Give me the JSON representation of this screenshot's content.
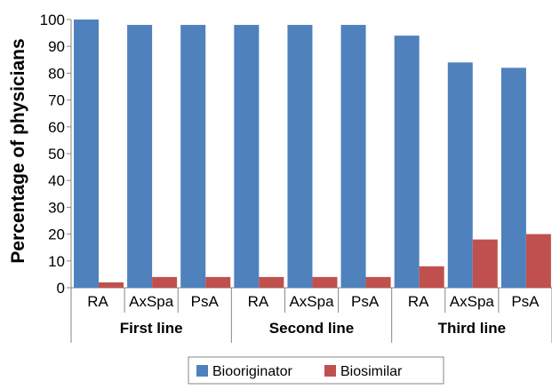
{
  "chart_data": {
    "type": "bar",
    "ylabel": "Percentage of physicians",
    "ylim": [
      0,
      100
    ],
    "yticks": [
      0,
      10,
      20,
      30,
      40,
      50,
      60,
      70,
      80,
      90,
      100
    ],
    "grid": false,
    "legend_position": "bottom",
    "groups": [
      {
        "label": "First line",
        "categories": [
          "RA",
          "AxSpa",
          "PsA"
        ]
      },
      {
        "label": "Second line",
        "categories": [
          "RA",
          "AxSpa",
          "PsA"
        ]
      },
      {
        "label": "Third line",
        "categories": [
          "RA",
          "AxSpa",
          "PsA"
        ]
      }
    ],
    "categories": [
      "RA",
      "AxSpa",
      "PsA",
      "RA",
      "AxSpa",
      "PsA",
      "RA",
      "AxSpa",
      "PsA"
    ],
    "series": [
      {
        "name": "Biooriginator",
        "color": "#4F81BD",
        "values": [
          100,
          98,
          98,
          98,
          98,
          98,
          94,
          84,
          82
        ]
      },
      {
        "name": "Biosimilar",
        "color": "#C0504D",
        "values": [
          2,
          4,
          4,
          4,
          4,
          4,
          8,
          18,
          20
        ]
      }
    ]
  }
}
